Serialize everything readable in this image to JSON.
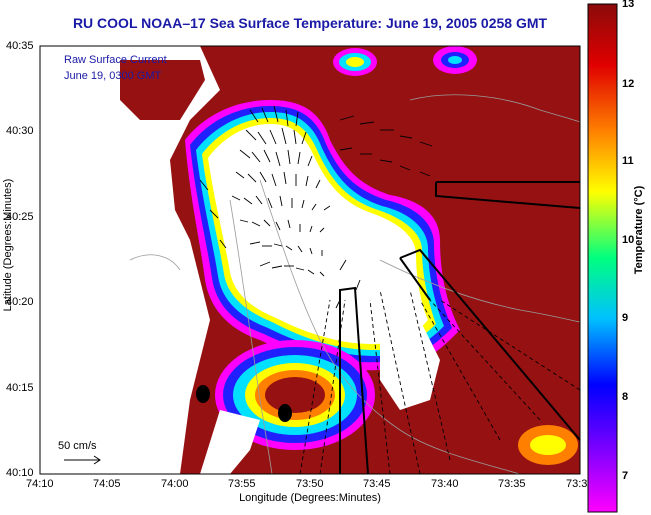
{
  "title": "RU COOL  NOAA–17  Sea Surface Temperature:  June 19, 2005 0258 GMT",
  "legend": {
    "line1": "Raw Surface Current",
    "line2": "June 19, 0300 GMT"
  },
  "scale_label": "50 cm/s",
  "axes": {
    "xlabel": "Longitude (Degrees:Minutes)",
    "ylabel": "Latitude (Degrees:Minutes)",
    "xticks": [
      "74:10",
      "74:05",
      "74:00",
      "73:55",
      "73:50",
      "73:45",
      "73:40",
      "73:35",
      "73:3"
    ],
    "yticks": [
      "40:35",
      "40:30",
      "40:25",
      "40:20",
      "40:15",
      "40:10"
    ]
  },
  "colorbar": {
    "label": "Temperature (°C)",
    "ticks": [
      "13",
      "12",
      "11",
      "10",
      "9",
      "8",
      "7"
    ],
    "colors": [
      "#8b0a0a",
      "#e00000",
      "#ff8000",
      "#ffff00",
      "#00ff80",
      "#00c0ff",
      "#0000ff",
      "#8000ff",
      "#ff00ff"
    ]
  },
  "map_colors": {
    "sea_warm": "#961212",
    "land": "#ffffff",
    "front_magenta": "#ff00ff",
    "front_blue": "#2020ff",
    "front_cyan": "#00e0ff",
    "front_yellow": "#ffff00"
  }
}
